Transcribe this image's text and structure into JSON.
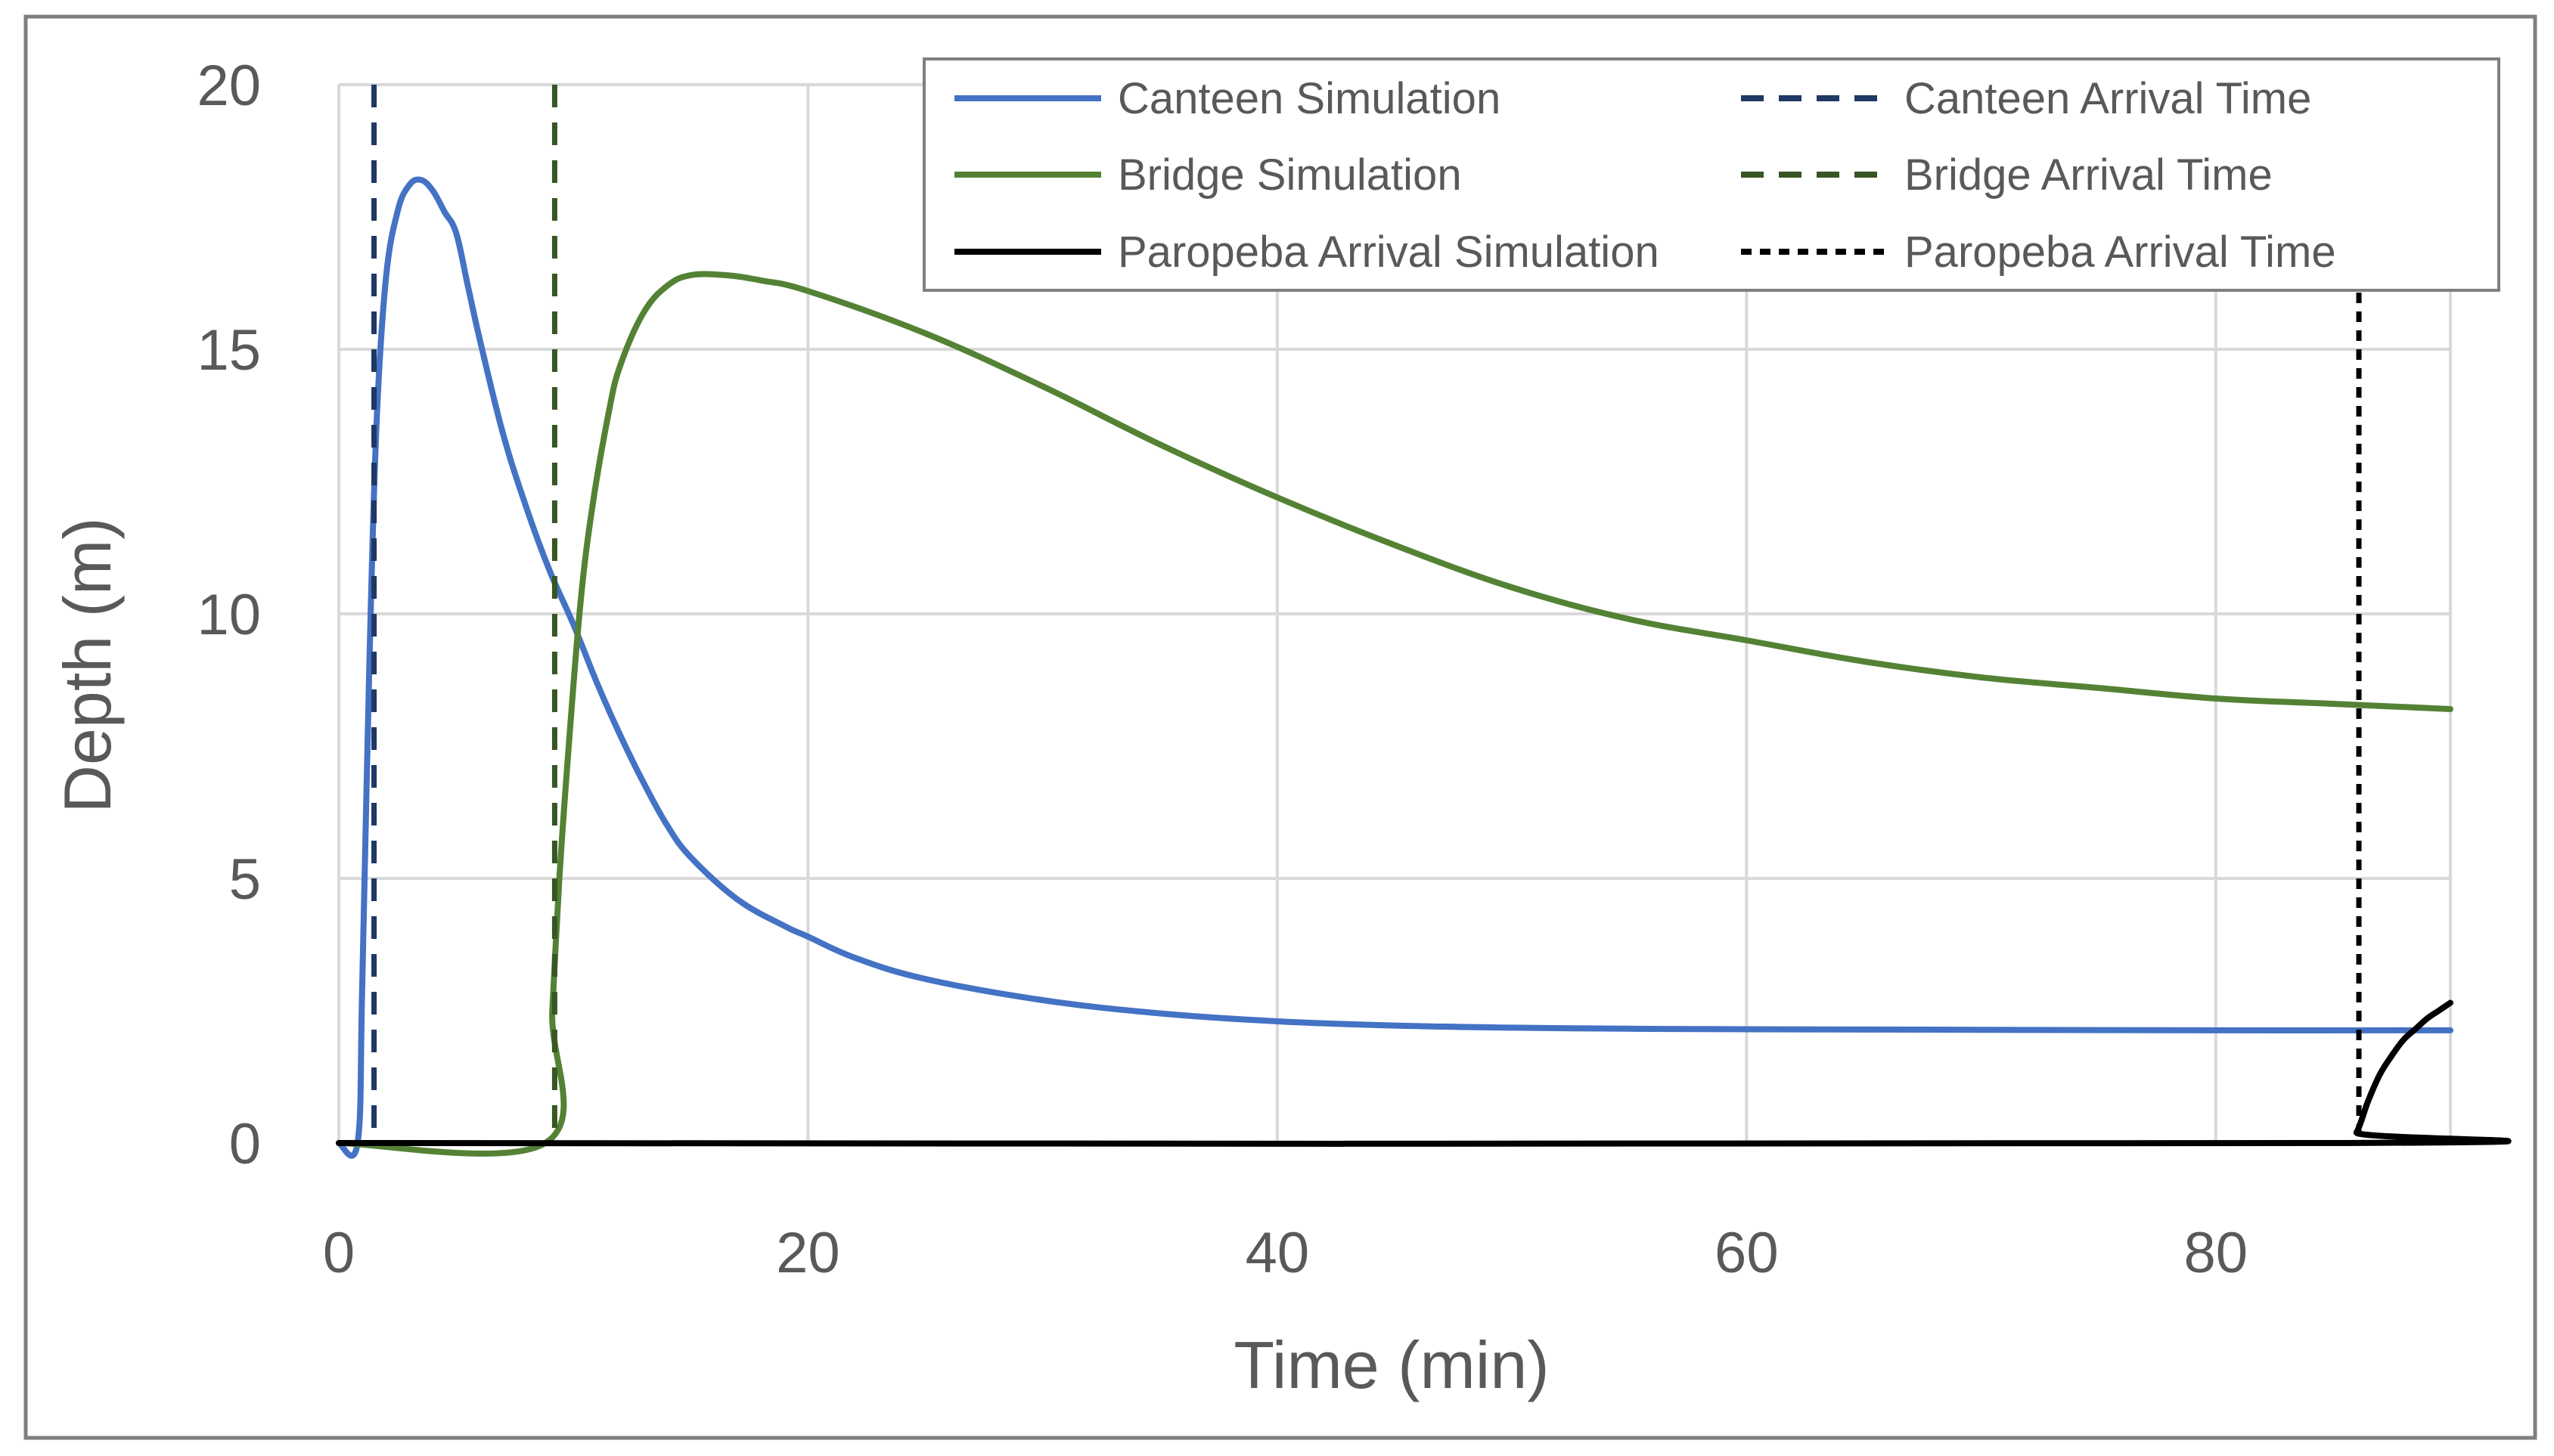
{
  "chart_data": {
    "type": "line",
    "title": "",
    "xlabel": "Time (min)",
    "ylabel": "Depth (m)",
    "xlim": [
      0,
      90
    ],
    "ylim": [
      0,
      20
    ],
    "xticks": [
      0,
      20,
      40,
      60,
      80
    ],
    "yticks": [
      0,
      5,
      10,
      15,
      20
    ],
    "grid": true,
    "legend_position": "top-right",
    "colors": {
      "canteen": "#4472C4",
      "bridge": "#548235",
      "paropeba": "#000000",
      "canteen_arrival": "#1F3864",
      "bridge_arrival": "#375623",
      "paropeba_arrival": "#000000",
      "grid": "#D9D9D9",
      "frame": "#7F7F7F"
    },
    "series": [
      {
        "name": "Canteen Simulation",
        "color_key": "canteen",
        "style": "solid",
        "x": [
          0,
          0.8,
          1.0,
          1.3,
          1.6,
          2.0,
          2.5,
          3.0,
          3.5,
          4.0,
          4.5,
          5.0,
          5.5,
          6.0,
          7.0,
          8.0,
          9.0,
          10.0,
          11.0,
          12.0,
          13.0,
          14.0,
          15.0,
          17.0,
          19.0,
          20.0,
          22.0,
          25.0,
          30.0,
          35.0,
          40.0,
          45.0,
          50.0,
          55.0,
          60.0,
          70.0,
          80.0,
          90.0
        ],
        "y": [
          0,
          0,
          3.0,
          9.0,
          13.5,
          16.3,
          17.6,
          18.1,
          18.2,
          18.0,
          17.6,
          17.2,
          16.2,
          15.2,
          13.4,
          12.0,
          10.8,
          9.8,
          8.7,
          7.7,
          6.8,
          6.0,
          5.4,
          4.6,
          4.1,
          3.9,
          3.5,
          3.1,
          2.7,
          2.45,
          2.3,
          2.22,
          2.18,
          2.16,
          2.15,
          2.14,
          2.13,
          2.13
        ]
      },
      {
        "name": "Bridge Simulation",
        "color_key": "bridge",
        "style": "solid",
        "x": [
          0,
          8.8,
          9.1,
          9.4,
          9.8,
          10.3,
          10.8,
          11.5,
          12.0,
          13.0,
          14.0,
          15.0,
          16.5,
          18.0,
          20.0,
          25.0,
          30.0,
          35.0,
          40.0,
          45.0,
          50.0,
          55.0,
          60.0,
          65.0,
          70.0,
          75.0,
          80.0,
          85.0,
          90.0
        ],
        "y": [
          0,
          0,
          2.5,
          5.0,
          7.5,
          10.2,
          12.0,
          13.8,
          14.7,
          15.7,
          16.2,
          16.4,
          16.4,
          16.3,
          16.1,
          15.3,
          14.3,
          13.2,
          12.2,
          11.3,
          10.5,
          9.9,
          9.5,
          9.1,
          8.8,
          8.6,
          8.4,
          8.3,
          8.2
        ]
      },
      {
        "name": "Paropeba Arrival Simulation",
        "color_key": "paropeba",
        "style": "solid",
        "x": [
          0,
          85.5,
          86.0,
          86.5,
          87.0,
          87.5,
          88.0,
          88.5,
          89.0,
          89.5,
          90.0
        ],
        "y": [
          0,
          0,
          0.2,
          0.8,
          1.3,
          1.65,
          1.95,
          2.15,
          2.35,
          2.5,
          2.65
        ]
      }
    ],
    "arrival_lines": [
      {
        "name": "Canteen Arrival Time",
        "x": 1.5,
        "color_key": "canteen_arrival",
        "style": "dashed"
      },
      {
        "name": "Bridge Arrival Time",
        "x": 9.2,
        "color_key": "bridge_arrival",
        "style": "dashed"
      },
      {
        "name": "Paropeba Arrival Time",
        "x": 86.1,
        "color_key": "paropeba_arrival",
        "style": "dotted"
      }
    ],
    "legend": [
      {
        "label": "Canteen Simulation",
        "color_key": "canteen",
        "style": "solid"
      },
      {
        "label": "Canteen Arrival Time",
        "color_key": "canteen_arrival",
        "style": "dashed"
      },
      {
        "label": "Bridge Simulation",
        "color_key": "bridge",
        "style": "solid"
      },
      {
        "label": "Bridge Arrival Time",
        "color_key": "bridge_arrival",
        "style": "dashed"
      },
      {
        "label": "Paropeba Arrival Simulation",
        "color_key": "paropeba",
        "style": "solid"
      },
      {
        "label": "Paropeba Arrival Time",
        "color_key": "paropeba_arrival",
        "style": "dotted"
      }
    ]
  }
}
